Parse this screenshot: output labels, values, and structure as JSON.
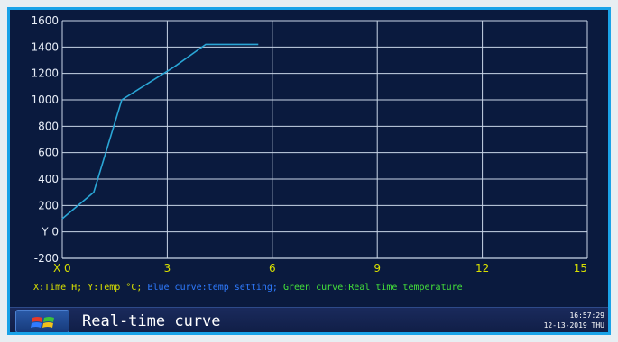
{
  "chart_data": {
    "type": "line",
    "y_ticks": [
      "1600",
      "1400",
      "1200",
      "1000",
      "800",
      "600",
      "400",
      "200",
      "Y 0",
      "-200"
    ],
    "x_ticks": [
      "X 0",
      "3",
      "6",
      "9",
      "12",
      "15"
    ],
    "xlim": [
      0,
      15
    ],
    "ylim": [
      -200,
      1600
    ],
    "grid": true,
    "series": [
      {
        "color": "#2aa6d6",
        "x": [
          0,
          0.9,
          1.7,
          3.2,
          4.1,
          5.6
        ],
        "y": [
          100,
          300,
          1000,
          1250,
          1420,
          1420
        ]
      }
    ]
  },
  "axis_note": {
    "xy": "X:Time H; Y:Temp °C;",
    "blue": "Blue curve:temp setting;",
    "green": "Green curve:Real time temperature"
  },
  "bottom_bar": {
    "title": "Real-time curve",
    "time": "16:57:29",
    "date": "12-13-2019 THU"
  },
  "colors": {
    "panel_bg": "#0a1a3e",
    "grid": "#c9d6e8",
    "frame": "#1aa3e8",
    "x_label": "#d8e000"
  }
}
